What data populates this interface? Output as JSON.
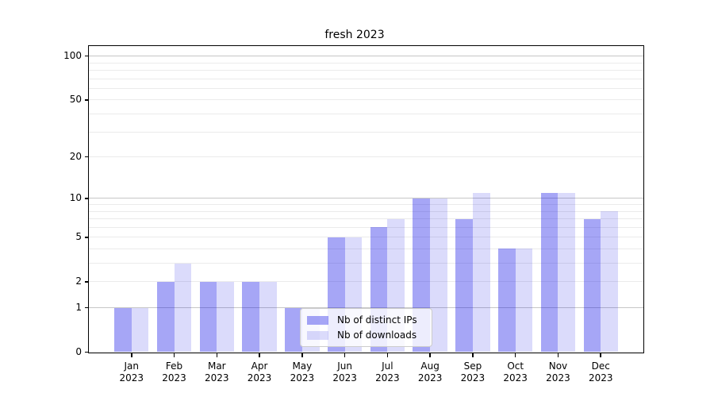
{
  "chart_data": {
    "type": "bar",
    "title": "fresh 2023",
    "yscale": "log1p",
    "categories": [
      "Jan 2023",
      "Feb 2023",
      "Mar 2023",
      "Apr 2023",
      "May 2023",
      "Jun 2023",
      "Jul 2023",
      "Aug 2023",
      "Sep 2023",
      "Oct 2023",
      "Nov 2023",
      "Dec 2023"
    ],
    "series": [
      {
        "name": "Nb of distinct IPs",
        "color": "rgba(0,0,230,0.35)",
        "values": [
          1,
          2,
          2,
          2,
          1,
          5,
          6,
          10,
          7,
          4,
          11,
          7
        ]
      },
      {
        "name": "Nb of downloads",
        "color": "rgba(0,0,230,0.14)",
        "values": [
          1,
          3,
          2,
          2,
          1,
          5,
          7,
          10,
          11,
          4,
          11,
          8
        ]
      }
    ],
    "yticks": [
      0,
      1,
      2,
      5,
      10,
      20,
      50,
      100
    ],
    "ylim": [
      0,
      117
    ],
    "grid": {
      "minor_values": [
        2,
        3,
        4,
        5,
        6,
        7,
        8,
        9,
        20,
        30,
        40,
        50,
        60,
        70,
        80,
        90
      ],
      "major_values": [
        1,
        10,
        100
      ],
      "minor_color": "#ebebeb",
      "major_color": "#c6c6c6"
    },
    "legend_position": "lower center",
    "colors": {
      "axis": "#000000",
      "background": "#ffffff",
      "legend_bg": "rgba(255,255,255,0.8)",
      "legend_border": "#cccccc"
    }
  }
}
